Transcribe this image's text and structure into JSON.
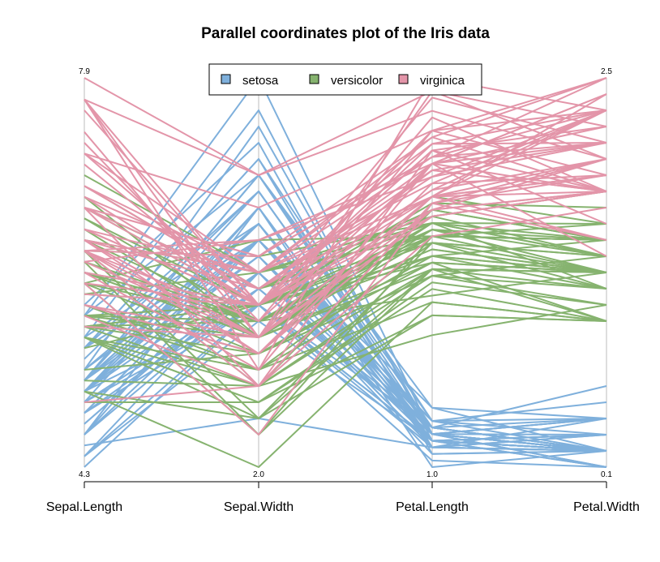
{
  "chart_data": {
    "type": "parallel-coordinates",
    "title": "Parallel coordinates plot of the Iris data",
    "axes": [
      {
        "name": "Sepal.Length",
        "min": "4.3",
        "max": "7.9",
        "minv": 4.3,
        "maxv": 7.9
      },
      {
        "name": "Sepal.Width",
        "min": "2.0",
        "max": "",
        "minv": 2.0,
        "maxv": 4.4
      },
      {
        "name": "Petal.Length",
        "min": "1.0",
        "max": "",
        "minv": 1.0,
        "maxv": 6.9
      },
      {
        "name": "Petal.Width",
        "min": "0.1",
        "max": "2.5",
        "minv": 0.1,
        "maxv": 2.5
      }
    ],
    "legend": {
      "placement": "top",
      "frame": true
    },
    "series": [
      {
        "name": "setosa",
        "color": "#7FB0DC",
        "rows": [
          [
            5.1,
            3.5,
            1.4,
            0.2
          ],
          [
            4.9,
            3.0,
            1.4,
            0.2
          ],
          [
            4.7,
            3.2,
            1.3,
            0.2
          ],
          [
            4.6,
            3.1,
            1.5,
            0.2
          ],
          [
            5.0,
            3.6,
            1.4,
            0.2
          ],
          [
            5.4,
            3.9,
            1.7,
            0.4
          ],
          [
            4.6,
            3.4,
            1.4,
            0.3
          ],
          [
            5.0,
            3.4,
            1.5,
            0.2
          ],
          [
            4.4,
            2.9,
            1.4,
            0.2
          ],
          [
            4.9,
            3.1,
            1.5,
            0.1
          ],
          [
            5.4,
            3.7,
            1.5,
            0.2
          ],
          [
            4.8,
            3.4,
            1.6,
            0.2
          ],
          [
            4.8,
            3.0,
            1.4,
            0.1
          ],
          [
            4.3,
            3.0,
            1.1,
            0.1
          ],
          [
            5.8,
            4.0,
            1.2,
            0.2
          ],
          [
            5.7,
            4.4,
            1.5,
            0.4
          ],
          [
            5.4,
            3.9,
            1.3,
            0.4
          ],
          [
            5.1,
            3.5,
            1.4,
            0.3
          ],
          [
            5.7,
            3.8,
            1.7,
            0.3
          ],
          [
            5.1,
            3.8,
            1.5,
            0.3
          ],
          [
            5.4,
            3.4,
            1.7,
            0.2
          ],
          [
            5.1,
            3.7,
            1.5,
            0.4
          ],
          [
            4.6,
            3.6,
            1.0,
            0.2
          ],
          [
            5.1,
            3.3,
            1.7,
            0.5
          ],
          [
            4.8,
            3.4,
            1.9,
            0.2
          ],
          [
            5.0,
            3.0,
            1.6,
            0.2
          ],
          [
            5.0,
            3.4,
            1.6,
            0.4
          ],
          [
            5.2,
            3.5,
            1.5,
            0.2
          ],
          [
            5.2,
            3.4,
            1.4,
            0.2
          ],
          [
            4.7,
            3.2,
            1.6,
            0.2
          ],
          [
            4.8,
            3.1,
            1.6,
            0.2
          ],
          [
            5.4,
            3.4,
            1.5,
            0.4
          ],
          [
            5.2,
            4.1,
            1.5,
            0.1
          ],
          [
            5.5,
            4.2,
            1.4,
            0.2
          ],
          [
            4.9,
            3.1,
            1.5,
            0.2
          ],
          [
            5.0,
            3.2,
            1.2,
            0.2
          ],
          [
            5.5,
            3.5,
            1.3,
            0.2
          ],
          [
            4.9,
            3.6,
            1.4,
            0.1
          ],
          [
            4.4,
            3.0,
            1.3,
            0.2
          ],
          [
            5.1,
            3.4,
            1.5,
            0.2
          ],
          [
            5.0,
            3.5,
            1.3,
            0.3
          ],
          [
            4.5,
            2.3,
            1.3,
            0.3
          ],
          [
            4.4,
            3.2,
            1.3,
            0.2
          ],
          [
            5.0,
            3.5,
            1.6,
            0.6
          ],
          [
            5.1,
            3.8,
            1.9,
            0.4
          ],
          [
            4.8,
            3.0,
            1.4,
            0.3
          ],
          [
            5.1,
            3.8,
            1.6,
            0.2
          ],
          [
            4.6,
            3.2,
            1.4,
            0.2
          ],
          [
            5.3,
            3.7,
            1.5,
            0.2
          ],
          [
            5.0,
            3.3,
            1.4,
            0.2
          ]
        ]
      },
      {
        "name": "versicolor",
        "color": "#86B36F",
        "rows": [
          [
            7.0,
            3.2,
            4.7,
            1.4
          ],
          [
            6.4,
            3.2,
            4.5,
            1.5
          ],
          [
            6.9,
            3.1,
            4.9,
            1.5
          ],
          [
            5.5,
            2.3,
            4.0,
            1.3
          ],
          [
            6.5,
            2.8,
            4.6,
            1.5
          ],
          [
            5.7,
            2.8,
            4.5,
            1.3
          ],
          [
            6.3,
            3.3,
            4.7,
            1.6
          ],
          [
            4.9,
            2.4,
            3.3,
            1.0
          ],
          [
            6.6,
            2.9,
            4.6,
            1.3
          ],
          [
            5.2,
            2.7,
            3.9,
            1.4
          ],
          [
            5.0,
            2.0,
            3.5,
            1.0
          ],
          [
            5.9,
            3.0,
            4.2,
            1.5
          ],
          [
            6.0,
            2.2,
            4.0,
            1.0
          ],
          [
            6.1,
            2.9,
            4.7,
            1.4
          ],
          [
            5.6,
            2.9,
            3.6,
            1.3
          ],
          [
            6.7,
            3.1,
            4.4,
            1.4
          ],
          [
            5.6,
            3.0,
            4.5,
            1.5
          ],
          [
            5.8,
            2.7,
            4.1,
            1.0
          ],
          [
            6.2,
            2.2,
            4.5,
            1.5
          ],
          [
            5.6,
            2.5,
            3.9,
            1.1
          ],
          [
            5.9,
            3.2,
            4.8,
            1.8
          ],
          [
            6.1,
            2.8,
            4.0,
            1.3
          ],
          [
            6.3,
            2.5,
            4.9,
            1.5
          ],
          [
            6.1,
            2.8,
            4.7,
            1.2
          ],
          [
            6.4,
            2.9,
            4.3,
            1.3
          ],
          [
            6.6,
            3.0,
            4.4,
            1.4
          ],
          [
            6.8,
            2.8,
            4.8,
            1.4
          ],
          [
            6.7,
            3.0,
            5.0,
            1.7
          ],
          [
            6.0,
            2.9,
            4.5,
            1.5
          ],
          [
            5.7,
            2.6,
            3.5,
            1.0
          ],
          [
            5.5,
            2.4,
            3.8,
            1.1
          ],
          [
            5.5,
            2.4,
            3.7,
            1.0
          ],
          [
            5.8,
            2.7,
            3.9,
            1.2
          ],
          [
            6.0,
            2.7,
            5.1,
            1.6
          ],
          [
            5.4,
            3.0,
            4.5,
            1.5
          ],
          [
            6.0,
            3.4,
            4.5,
            1.6
          ],
          [
            6.7,
            3.1,
            4.7,
            1.5
          ],
          [
            6.3,
            2.3,
            4.4,
            1.3
          ],
          [
            5.6,
            3.0,
            4.1,
            1.3
          ],
          [
            5.5,
            2.5,
            4.0,
            1.3
          ],
          [
            5.5,
            2.6,
            4.4,
            1.2
          ],
          [
            6.1,
            3.0,
            4.6,
            1.4
          ],
          [
            5.8,
            2.6,
            4.0,
            1.2
          ],
          [
            5.0,
            2.3,
            3.3,
            1.0
          ],
          [
            5.6,
            2.7,
            4.2,
            1.3
          ],
          [
            5.7,
            3.0,
            4.2,
            1.2
          ],
          [
            5.7,
            2.9,
            4.2,
            1.3
          ],
          [
            6.2,
            2.9,
            4.3,
            1.3
          ],
          [
            5.1,
            2.5,
            3.0,
            1.1
          ],
          [
            5.7,
            2.8,
            4.1,
            1.3
          ]
        ]
      },
      {
        "name": "virginica",
        "color": "#E395A9",
        "rows": [
          [
            6.3,
            3.3,
            6.0,
            2.5
          ],
          [
            5.8,
            2.7,
            5.1,
            1.9
          ],
          [
            7.1,
            3.0,
            5.9,
            2.1
          ],
          [
            6.3,
            2.9,
            5.6,
            1.8
          ],
          [
            6.5,
            3.0,
            5.8,
            2.2
          ],
          [
            7.6,
            3.0,
            6.6,
            2.1
          ],
          [
            4.9,
            2.5,
            4.5,
            1.7
          ],
          [
            7.3,
            2.9,
            6.3,
            1.8
          ],
          [
            6.7,
            2.5,
            5.8,
            1.8
          ],
          [
            7.2,
            3.6,
            6.1,
            2.5
          ],
          [
            6.5,
            3.2,
            5.1,
            2.0
          ],
          [
            6.4,
            2.7,
            5.3,
            1.9
          ],
          [
            6.8,
            3.0,
            5.5,
            2.1
          ],
          [
            5.7,
            2.5,
            5.0,
            2.0
          ],
          [
            5.8,
            2.8,
            5.1,
            2.4
          ],
          [
            6.4,
            3.2,
            5.3,
            2.3
          ],
          [
            6.5,
            3.0,
            5.5,
            1.8
          ],
          [
            7.7,
            3.8,
            6.7,
            2.2
          ],
          [
            7.7,
            2.6,
            6.9,
            2.3
          ],
          [
            6.0,
            2.2,
            5.0,
            1.5
          ],
          [
            6.9,
            3.2,
            5.7,
            2.3
          ],
          [
            5.6,
            2.8,
            4.9,
            2.0
          ],
          [
            7.7,
            2.8,
            6.7,
            2.0
          ],
          [
            6.3,
            2.7,
            4.9,
            1.8
          ],
          [
            6.7,
            3.3,
            5.7,
            2.1
          ],
          [
            7.2,
            3.2,
            6.0,
            1.8
          ],
          [
            6.2,
            2.8,
            4.8,
            1.8
          ],
          [
            6.1,
            3.0,
            4.9,
            1.8
          ],
          [
            6.4,
            2.8,
            5.6,
            2.1
          ],
          [
            7.2,
            3.0,
            5.8,
            1.6
          ],
          [
            7.4,
            2.8,
            6.1,
            1.9
          ],
          [
            7.9,
            3.8,
            6.4,
            2.0
          ],
          [
            6.4,
            2.8,
            5.6,
            2.2
          ],
          [
            6.3,
            2.8,
            5.1,
            1.5
          ],
          [
            6.1,
            2.6,
            5.6,
            1.4
          ],
          [
            7.7,
            3.0,
            6.1,
            2.3
          ],
          [
            6.3,
            3.4,
            5.6,
            2.4
          ],
          [
            6.4,
            3.1,
            5.5,
            1.8
          ],
          [
            6.0,
            3.0,
            4.8,
            1.8
          ],
          [
            6.9,
            3.1,
            5.4,
            2.1
          ],
          [
            6.7,
            3.1,
            5.6,
            2.4
          ],
          [
            6.9,
            3.1,
            5.1,
            2.3
          ],
          [
            5.8,
            2.7,
            5.1,
            1.9
          ],
          [
            6.8,
            3.2,
            5.9,
            2.3
          ],
          [
            6.7,
            3.3,
            5.7,
            2.5
          ],
          [
            6.7,
            3.0,
            5.2,
            2.3
          ],
          [
            6.3,
            2.5,
            5.0,
            1.9
          ],
          [
            6.5,
            3.0,
            5.2,
            2.0
          ],
          [
            6.2,
            3.4,
            5.4,
            2.3
          ],
          [
            5.9,
            3.0,
            5.1,
            1.8
          ]
        ]
      }
    ]
  }
}
